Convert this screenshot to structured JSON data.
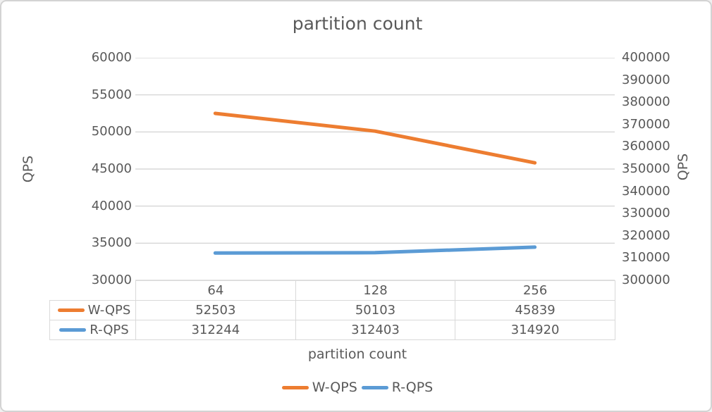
{
  "chart_data": {
    "type": "line",
    "title": "partition count",
    "xlabel": "partition count",
    "categories": [
      "64",
      "128",
      "256"
    ],
    "series": [
      {
        "name": "W-QPS",
        "axis": "left",
        "color": "#ED7D31",
        "values": [
          52503,
          50103,
          45839
        ]
      },
      {
        "name": "R-QPS",
        "axis": "right",
        "color": "#5B9BD5",
        "values": [
          312244,
          312403,
          314920
        ]
      }
    ],
    "axes": {
      "left": {
        "label": "QPS",
        "min": 30000,
        "max": 60000,
        "step": 5000
      },
      "right": {
        "label": "QPS",
        "min": 300000,
        "max": 400000,
        "step": 10000
      }
    },
    "grid": true,
    "gridline_color": "#d9d9d9",
    "legend_position": "bottom",
    "data_table_shown": true,
    "text_color": "#595959"
  }
}
